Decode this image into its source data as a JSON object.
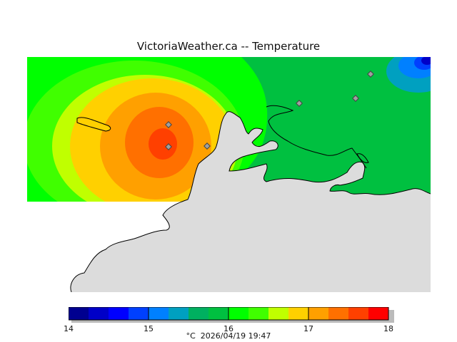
{
  "title": "VictoriaWeather.ca  --  Temperature",
  "legend": {
    "colors": [
      "#000090",
      "#0000c8",
      "#0000ff",
      "#0040ff",
      "#0080ff",
      "#00a0c0",
      "#00b060",
      "#00c040",
      "#00ff00",
      "#40ff00",
      "#c0ff00",
      "#ffd000",
      "#ffa000",
      "#ff7000",
      "#ff4000",
      "#ff0000"
    ],
    "ticks": [
      "14",
      "15",
      "16",
      "17",
      "18"
    ]
  },
  "caption": {
    "unit": "°C",
    "timestamp": "2026/04/19 19:47"
  },
  "land_color": "#dcdcdc",
  "stations_count": 6
}
